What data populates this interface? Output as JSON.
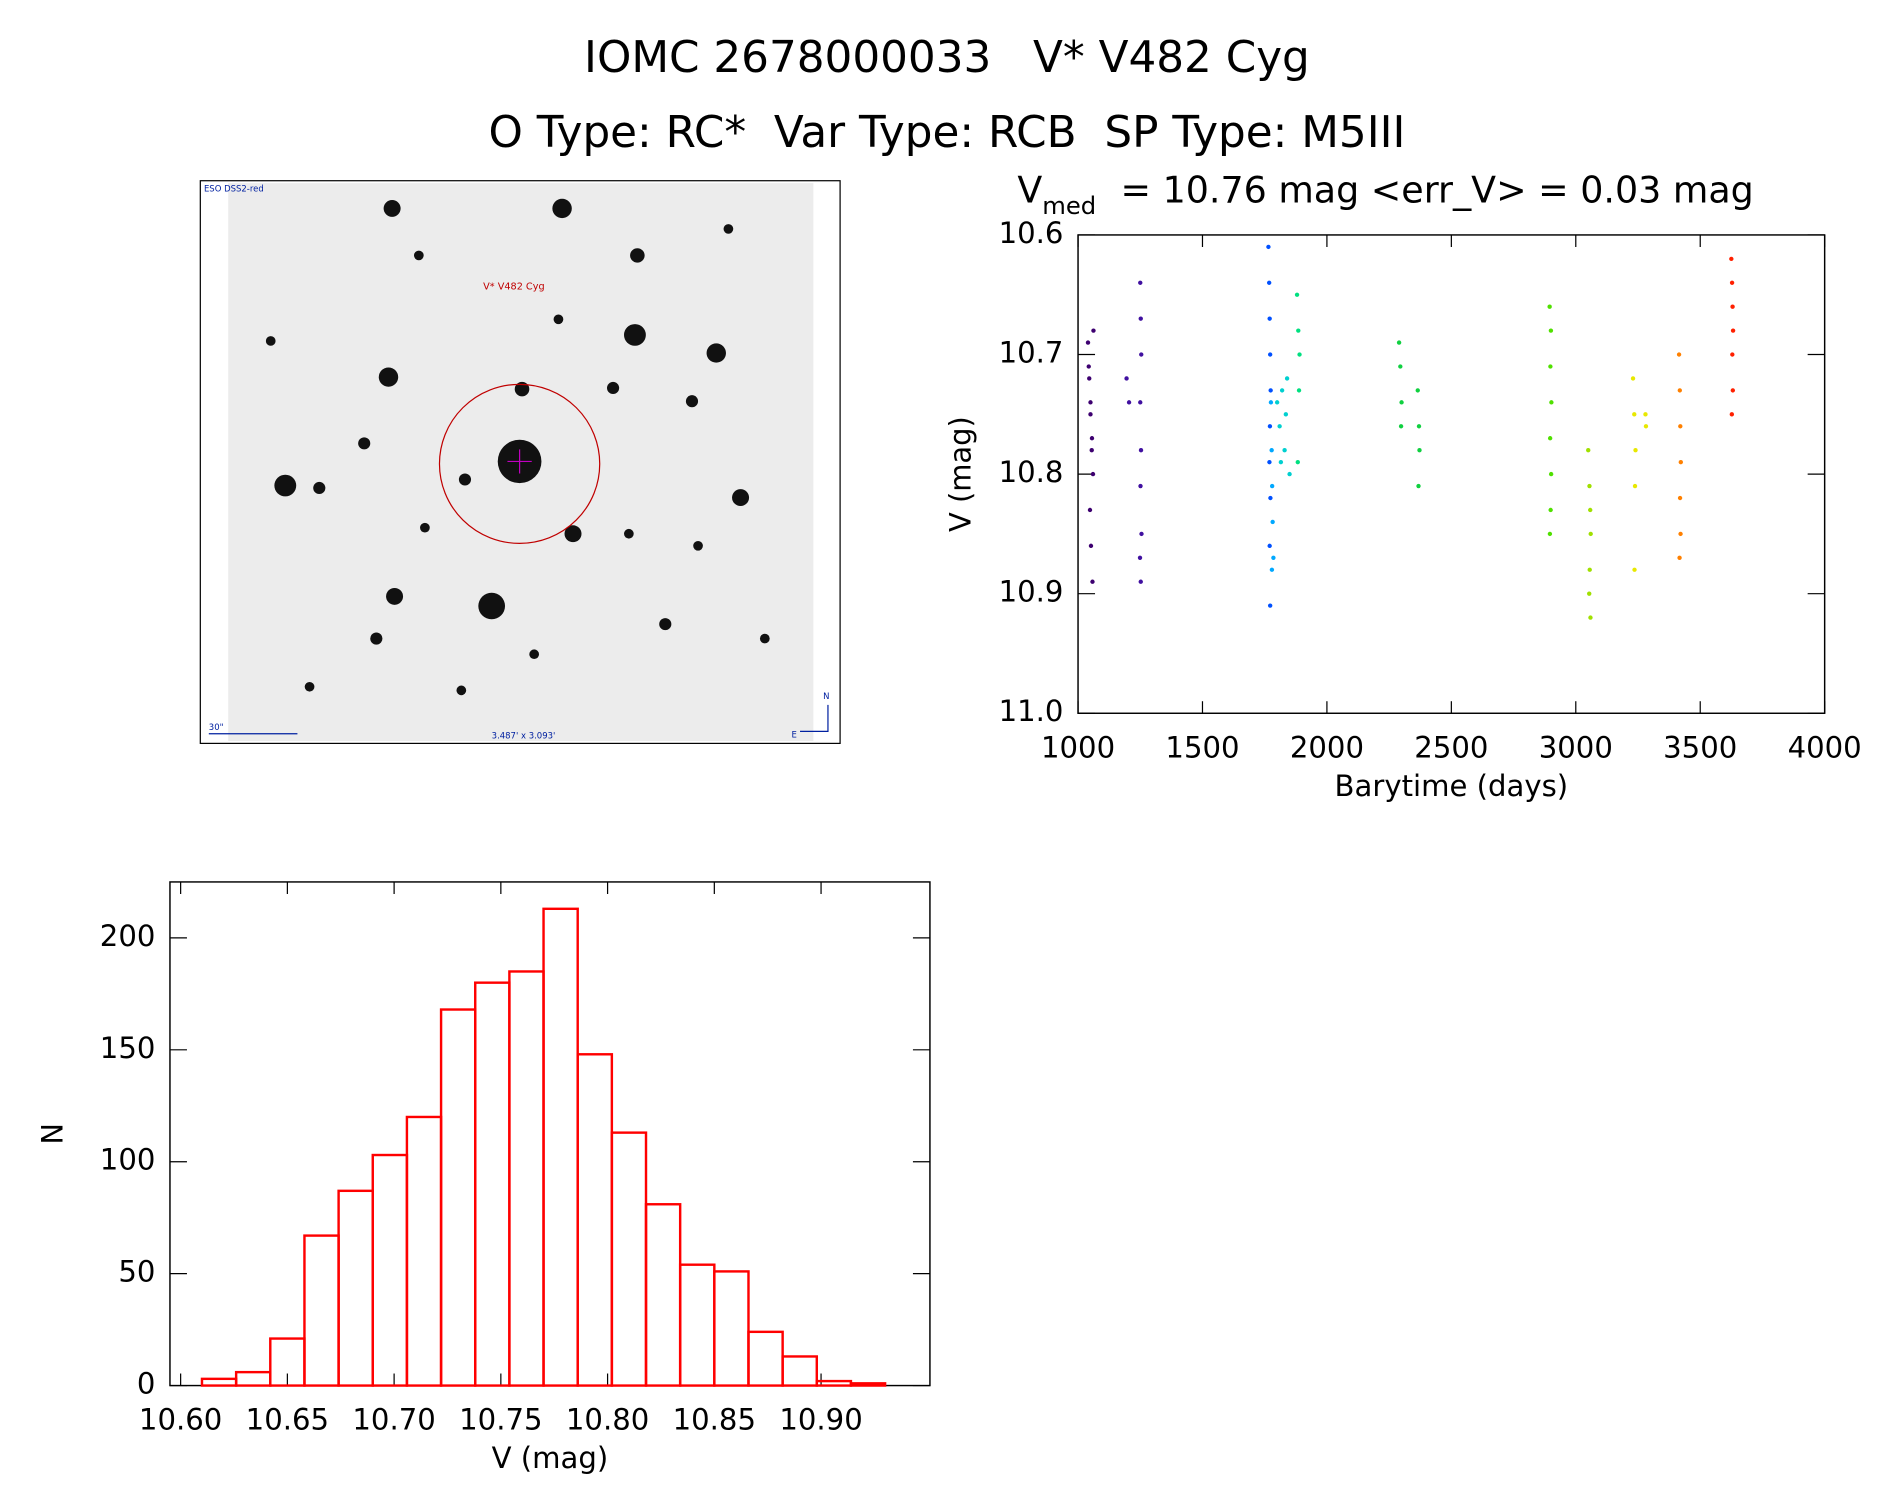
{
  "header": {
    "title": "IOMC 2678000033   V* V482 Cyg",
    "subtitle": "O Type: RC*  Var Type: RCB  SP Type: M5III"
  },
  "finder_chart": {
    "survey": "ESO DSS2-red",
    "object": "V* V482 Cyg",
    "scale": "30\"",
    "fov": "3.487' x 3.093'",
    "north": "N",
    "east": "E"
  },
  "chart_data": [
    {
      "type": "scatter",
      "title": {
        "symbol": "V",
        "subscript": "med",
        "text": "= 10.76 mag <err_V> = 0.03 mag"
      },
      "xlabel": "Barytime (days)",
      "ylabel": "V (mag)",
      "xlim": [
        1000,
        4000
      ],
      "xticks": [
        1000,
        1500,
        2000,
        2500,
        3000,
        3500,
        4000
      ],
      "ylim": [
        11.0,
        10.6
      ],
      "yticks": [
        10.6,
        10.7,
        10.8,
        10.9,
        {
          "value": 11.0,
          "label": "11.0"
        }
      ],
      "series": [
        {
          "color": "#3d0070",
          "x": [
            1040,
            1045,
            1050,
            1055,
            1060,
            1048,
            1052,
            1058,
            1043,
            1062,
            1056,
            1050
          ],
          "values": [
            10.69,
            10.72,
            10.75,
            10.78,
            10.8,
            10.83,
            10.86,
            10.89,
            10.71,
            10.68,
            10.77,
            10.74
          ]
        },
        {
          "color": "#4010a0",
          "x": [
            1195,
            1205,
            1250,
            1252,
            1254,
            1250,
            1253,
            1251,
            1255,
            1249,
            1252
          ],
          "values": [
            10.72,
            10.74,
            10.64,
            10.67,
            10.7,
            10.74,
            10.78,
            10.81,
            10.85,
            10.87,
            10.89
          ]
        },
        {
          "color": "#0050ff",
          "x": [
            1765,
            1768,
            1770,
            1772,
            1774,
            1771,
            1769,
            1773,
            1770,
            1772
          ],
          "values": [
            10.61,
            10.64,
            10.67,
            10.7,
            10.73,
            10.76,
            10.79,
            10.82,
            10.86,
            10.91
          ]
        },
        {
          "color": "#00a8ff",
          "x": [
            1775,
            1778,
            1780,
            1782,
            1785,
            1779
          ],
          "values": [
            10.74,
            10.78,
            10.81,
            10.84,
            10.87,
            10.88
          ]
        },
        {
          "color": "#00d0d0",
          "x": [
            1800,
            1810,
            1820,
            1830,
            1840,
            1850,
            1815,
            1835
          ],
          "values": [
            10.74,
            10.76,
            10.73,
            10.78,
            10.72,
            10.8,
            10.79,
            10.75
          ]
        },
        {
          "color": "#00e080",
          "x": [
            1880,
            1885,
            1890,
            1888,
            1883
          ],
          "values": [
            10.65,
            10.68,
            10.7,
            10.73,
            10.79
          ]
        },
        {
          "color": "#10d040",
          "x": [
            2290,
            2295,
            2300,
            2298,
            2365,
            2370,
            2372,
            2368
          ],
          "values": [
            10.69,
            10.71,
            10.74,
            10.76,
            10.73,
            10.76,
            10.78,
            10.81
          ]
        },
        {
          "color": "#50e000",
          "x": [
            2895,
            2900,
            2898,
            2902,
            2897,
            2901,
            2899,
            2896
          ],
          "values": [
            10.66,
            10.68,
            10.71,
            10.74,
            10.77,
            10.8,
            10.83,
            10.85
          ]
        },
        {
          "color": "#a0e000",
          "x": [
            3050,
            3055,
            3058,
            3060,
            3056,
            3054,
            3059
          ],
          "values": [
            10.78,
            10.81,
            10.83,
            10.85,
            10.88,
            10.9,
            10.92
          ]
        },
        {
          "color": "#e8e800",
          "x": [
            3230,
            3235,
            3240,
            3238,
            3236,
            3280,
            3282
          ],
          "values": [
            10.72,
            10.75,
            10.78,
            10.81,
            10.88,
            10.75,
            10.76
          ]
        },
        {
          "color": "#ff8000",
          "x": [
            3415,
            3418,
            3420,
            3422,
            3419,
            3421,
            3417
          ],
          "values": [
            10.7,
            10.73,
            10.76,
            10.79,
            10.82,
            10.85,
            10.87
          ]
        },
        {
          "color": "#ff2000",
          "x": [
            3625,
            3628,
            3630,
            3632,
            3629,
            3631,
            3627
          ],
          "values": [
            10.62,
            10.64,
            10.66,
            10.68,
            10.7,
            10.73,
            10.75
          ]
        }
      ]
    },
    {
      "type": "histogram",
      "xlabel": "V (mag)",
      "ylabel": "N",
      "color": "#ff0000",
      "bins": [
        10.61,
        10.626,
        10.642,
        10.658,
        10.674,
        10.69,
        10.706,
        10.722,
        10.738,
        10.754,
        10.77,
        10.786,
        10.802,
        10.818,
        10.834,
        10.85,
        10.866,
        10.882,
        10.898,
        10.914,
        10.93
      ],
      "values": [
        3,
        6,
        21,
        67,
        87,
        103,
        120,
        168,
        180,
        185,
        213,
        148,
        113,
        81,
        54,
        51,
        24,
        13,
        2,
        1
      ],
      "xlim": [
        10.595,
        10.951
      ],
      "xticks": [
        {
          "value": 10.6,
          "label": "10.60"
        },
        10.65,
        {
          "value": 10.7,
          "label": "10.70"
        },
        10.75,
        {
          "value": 10.8,
          "label": "10.80"
        },
        10.85,
        {
          "value": 10.9,
          "label": "10.90"
        }
      ],
      "ylim": [
        0,
        225
      ],
      "yticks": [
        0,
        50,
        100,
        150,
        200
      ]
    }
  ]
}
